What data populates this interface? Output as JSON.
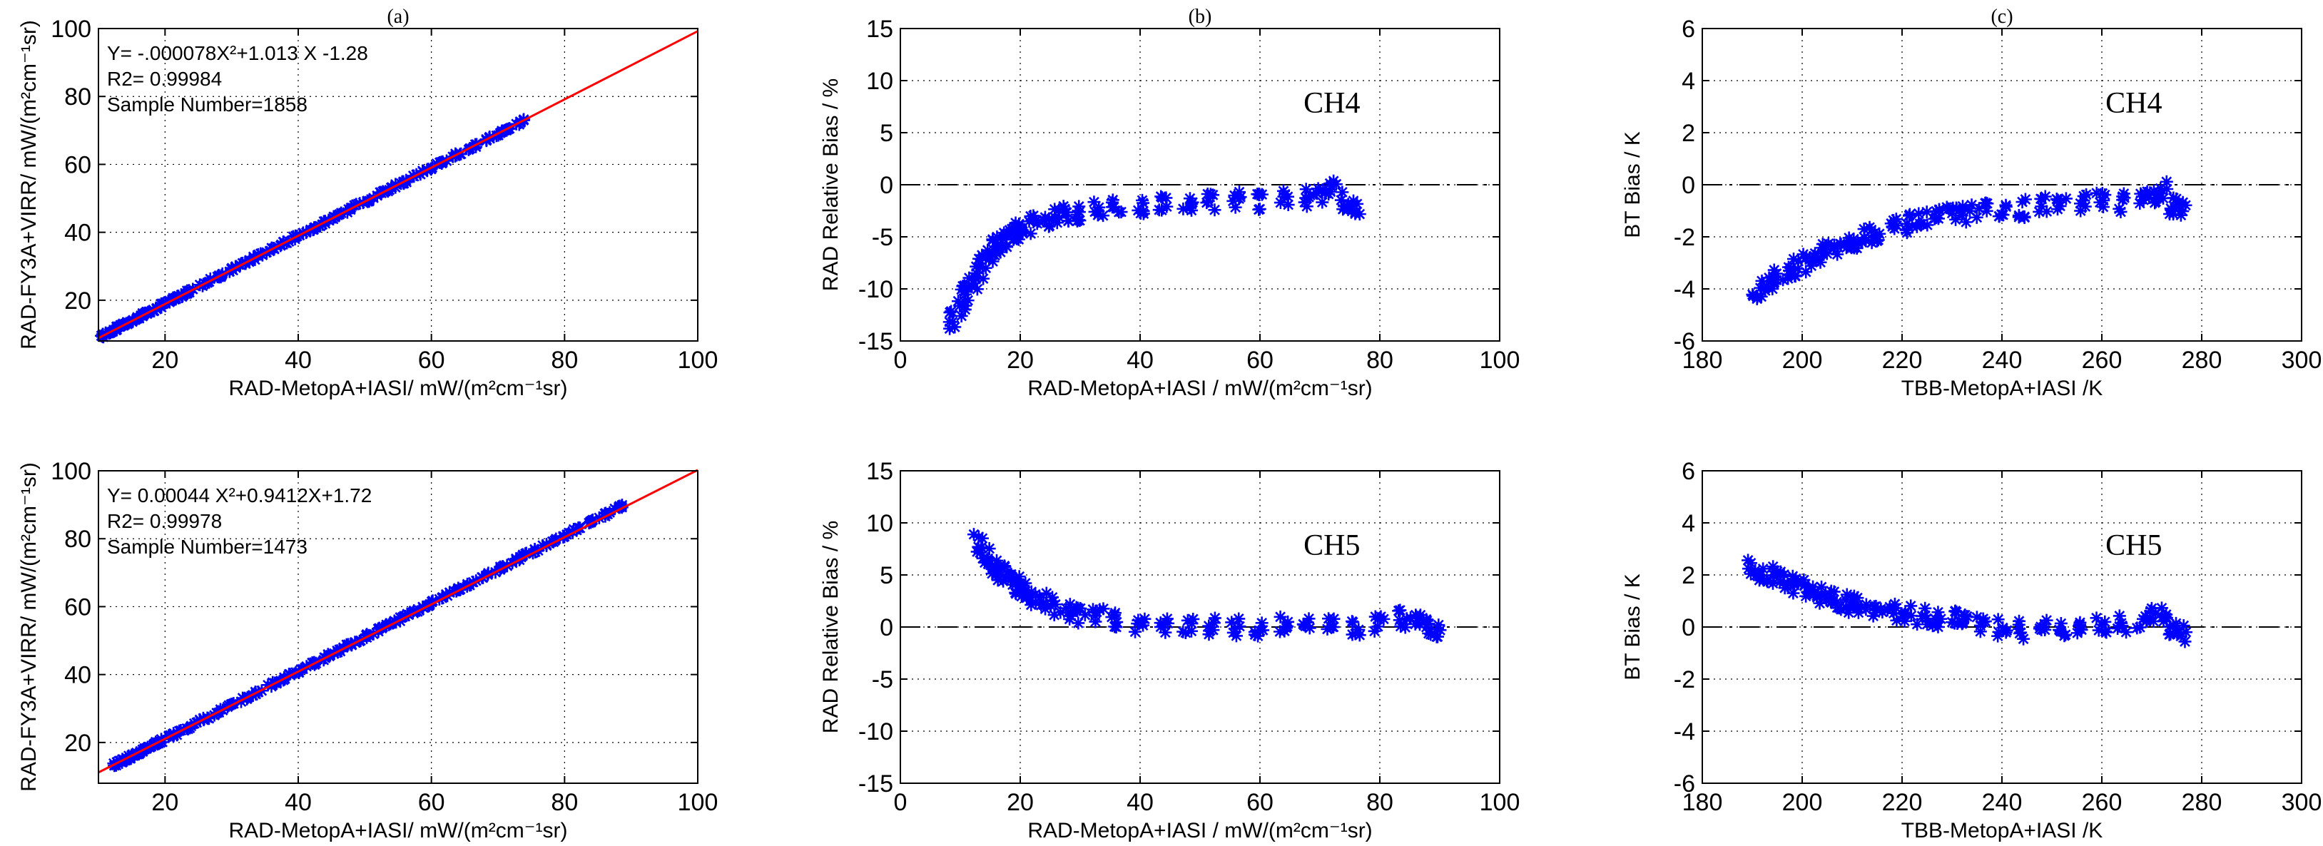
{
  "chart_data": [
    {
      "id": "a1",
      "type": "scatter",
      "panel_label": "(a)",
      "channel": "",
      "xlim": [
        10,
        100
      ],
      "ylim": [
        8,
        100
      ],
      "xticks": [
        20,
        40,
        60,
        80,
        100
      ],
      "yticks": [
        20,
        40,
        60,
        80,
        100
      ],
      "xlabel": "RAD-MetopA+IASI/ mW/(m²cm⁻¹sr)",
      "ylabel": "RAD-FY3A+VIRR/ mW/(m²cm⁻¹sr)",
      "fit_line": {
        "color": "#ff0000",
        "x": [
          10,
          100
        ],
        "y": [
          8.85,
          99.22
        ]
      },
      "annotations": [
        "Y= -.000078X²+1.013 X -1.28",
        "R2= 0.99984",
        "Sample Number=1858"
      ],
      "series": [
        {
          "name": "samples",
          "color": "#0000ff",
          "marker": "star",
          "x": [
            10,
            11,
            12,
            13,
            14,
            15,
            16,
            17,
            18,
            19,
            20,
            21,
            22,
            24,
            26,
            28,
            30,
            32,
            34,
            36,
            38,
            40,
            42,
            44,
            46,
            48,
            50,
            52,
            54,
            56,
            58,
            60,
            62,
            64,
            66,
            68,
            70,
            72,
            74
          ],
          "y": [
            9,
            10,
            11,
            12,
            13,
            14,
            15,
            16,
            17,
            18,
            19,
            20,
            21,
            23,
            25,
            27,
            29,
            31,
            33,
            35,
            37,
            39,
            41,
            43,
            45,
            47,
            49,
            51,
            53,
            55,
            57,
            59,
            61,
            63,
            65,
            67,
            69,
            71,
            73
          ]
        }
      ]
    },
    {
      "id": "b1",
      "type": "scatter",
      "panel_label": "(b)",
      "channel": "CH4",
      "xlim": [
        0,
        100
      ],
      "ylim": [
        -15,
        15
      ],
      "xticks": [
        0,
        20,
        40,
        60,
        80,
        100
      ],
      "yticks": [
        -15,
        -10,
        -5,
        0,
        5,
        10,
        15
      ],
      "xlabel": "RAD-MetopA+IASI / mW/(m²cm⁻¹sr)",
      "ylabel": "RAD Relative Bias / %",
      "zero_line": true,
      "series": [
        {
          "name": "bias",
          "color": "#0000ff",
          "marker": "star",
          "x": [
            9,
            10,
            11,
            12,
            13,
            14,
            15,
            16,
            17,
            18,
            19,
            20,
            22,
            24,
            26,
            28,
            30,
            33,
            36,
            40,
            44,
            48,
            52,
            56,
            60,
            64,
            68,
            70,
            72,
            74,
            76
          ],
          "y": [
            -13,
            -12,
            -10.5,
            -9.5,
            -8.5,
            -7.5,
            -7,
            -6,
            -5.5,
            -5,
            -4.5,
            -4.2,
            -3.8,
            -3.4,
            -3.1,
            -2.8,
            -2.6,
            -2.3,
            -2.1,
            -1.9,
            -1.8,
            -1.7,
            -1.6,
            -1.5,
            -1.5,
            -1.4,
            -1.2,
            -0.8,
            -0.5,
            -1.6,
            -2
          ]
        }
      ]
    },
    {
      "id": "c1",
      "type": "scatter",
      "panel_label": "(c)",
      "channel": "CH4",
      "xlim": [
        180,
        300
      ],
      "ylim": [
        -6,
        6
      ],
      "xticks": [
        180,
        200,
        220,
        240,
        260,
        280,
        300
      ],
      "yticks": [
        -6,
        -4,
        -2,
        0,
        2,
        4,
        6
      ],
      "xlabel": "TBB-MetopA+IASI /K",
      "ylabel": "BT Bias / K",
      "zero_line": true,
      "series": [
        {
          "name": "bias",
          "color": "#0000ff",
          "marker": "star",
          "x": [
            191,
            193,
            195,
            197,
            199,
            201,
            203,
            205,
            207,
            209,
            211,
            213,
            215,
            218,
            221,
            224,
            227,
            230,
            233,
            236,
            240,
            244,
            248,
            252,
            256,
            260,
            264,
            268,
            270,
            272,
            274,
            276
          ],
          "y": [
            -4.2,
            -3.9,
            -3.6,
            -3.4,
            -3.2,
            -3.0,
            -2.8,
            -2.6,
            -2.4,
            -2.2,
            -2.1,
            -1.9,
            -1.8,
            -1.6,
            -1.5,
            -1.4,
            -1.3,
            -1.2,
            -1.1,
            -1.0,
            -0.9,
            -0.9,
            -0.8,
            -0.8,
            -0.7,
            -0.6,
            -0.7,
            -0.6,
            -0.5,
            -0.2,
            -0.8,
            -1.0
          ]
        }
      ]
    },
    {
      "id": "a2",
      "type": "scatter",
      "panel_label": "",
      "channel": "",
      "xlim": [
        10,
        100
      ],
      "ylim": [
        8,
        100
      ],
      "xticks": [
        20,
        40,
        60,
        80,
        100
      ],
      "yticks": [
        20,
        40,
        60,
        80,
        100
      ],
      "xlabel": "RAD-MetopA+IASI/ mW/(m²cm⁻¹sr)",
      "ylabel": "RAD-FY3A+VIRR/ mW/(m²cm⁻¹sr)",
      "fit_line": {
        "color": "#ff0000",
        "x": [
          10,
          100
        ],
        "y": [
          11.18,
          100.24
        ]
      },
      "annotations": [
        "Y= 0.00044 X²+0.9412X+1.72",
        "R2= 0.99978",
        "Sample Number=1473"
      ],
      "series": [
        {
          "name": "samples",
          "color": "#0000ff",
          "marker": "star",
          "x": [
            13,
            14,
            15,
            16,
            17,
            18,
            19,
            20,
            22,
            24,
            26,
            28,
            30,
            32,
            34,
            36,
            38,
            40,
            42,
            44,
            46,
            48,
            50,
            52,
            54,
            56,
            58,
            60,
            62,
            64,
            66,
            68,
            70,
            72,
            74,
            76,
            78,
            80,
            82,
            84,
            86,
            88
          ],
          "y": [
            14,
            15,
            16,
            17,
            18,
            19,
            20,
            21,
            23,
            25,
            27,
            29,
            31,
            33,
            35,
            37,
            39,
            41,
            43,
            45,
            47,
            49,
            51,
            53,
            55,
            57,
            59,
            61,
            63,
            65,
            67,
            69,
            71,
            73,
            75,
            77,
            79,
            81,
            83,
            85,
            87,
            89
          ]
        }
      ]
    },
    {
      "id": "b2",
      "type": "scatter",
      "panel_label": "",
      "channel": "CH5",
      "xlim": [
        0,
        100
      ],
      "ylim": [
        -15,
        15
      ],
      "xticks": [
        0,
        20,
        40,
        60,
        80,
        100
      ],
      "yticks": [
        -15,
        -10,
        -5,
        0,
        5,
        10,
        15
      ],
      "xlabel": "RAD-MetopA+IASI / mW/(m²cm⁻¹sr)",
      "ylabel": "RAD Relative Bias / %",
      "zero_line": true,
      "series": [
        {
          "name": "bias",
          "color": "#0000ff",
          "marker": "star",
          "x": [
            13,
            14,
            15,
            16,
            17,
            18,
            19,
            20,
            21,
            22,
            24,
            26,
            28,
            30,
            33,
            36,
            40,
            44,
            48,
            52,
            56,
            60,
            64,
            68,
            72,
            76,
            80,
            84,
            86,
            88,
            90
          ],
          "y": [
            8,
            7,
            6,
            5.5,
            5,
            4.5,
            4,
            3.5,
            3.2,
            3,
            2.5,
            2,
            1.5,
            1.2,
            0.9,
            0.6,
            0.4,
            0.2,
            0.1,
            0,
            -0.1,
            0,
            0.1,
            0,
            0.2,
            0,
            0.1,
            0.8,
            0.5,
            0,
            -0.5
          ]
        }
      ]
    },
    {
      "id": "c2",
      "type": "scatter",
      "panel_label": "",
      "channel": "CH5",
      "xlim": [
        180,
        300
      ],
      "ylim": [
        -6,
        6
      ],
      "xticks": [
        180,
        200,
        220,
        240,
        260,
        280,
        300
      ],
      "yticks": [
        -6,
        -4,
        -2,
        0,
        2,
        4,
        6
      ],
      "xlabel": "TBB-MetopA+IASI /K",
      "ylabel": "BT Bias / K",
      "zero_line": true,
      "series": [
        {
          "name": "bias",
          "color": "#0000ff",
          "marker": "star",
          "x": [
            190,
            192,
            194,
            196,
            198,
            200,
            202,
            204,
            206,
            208,
            210,
            212,
            215,
            218,
            221,
            224,
            227,
            230,
            233,
            236,
            240,
            244,
            248,
            252,
            256,
            260,
            264,
            268,
            270,
            272,
            274,
            276
          ],
          "y": [
            2.3,
            2.1,
            2.0,
            1.8,
            1.6,
            1.5,
            1.3,
            1.2,
            1.1,
            1.0,
            0.9,
            0.8,
            0.7,
            0.6,
            0.5,
            0.4,
            0.35,
            0.3,
            0.2,
            0.1,
            0.0,
            -0.1,
            -0.1,
            -0.1,
            -0.1,
            0.0,
            0.1,
            0.2,
            0.4,
            0.5,
            0.0,
            -0.3
          ]
        }
      ]
    }
  ]
}
